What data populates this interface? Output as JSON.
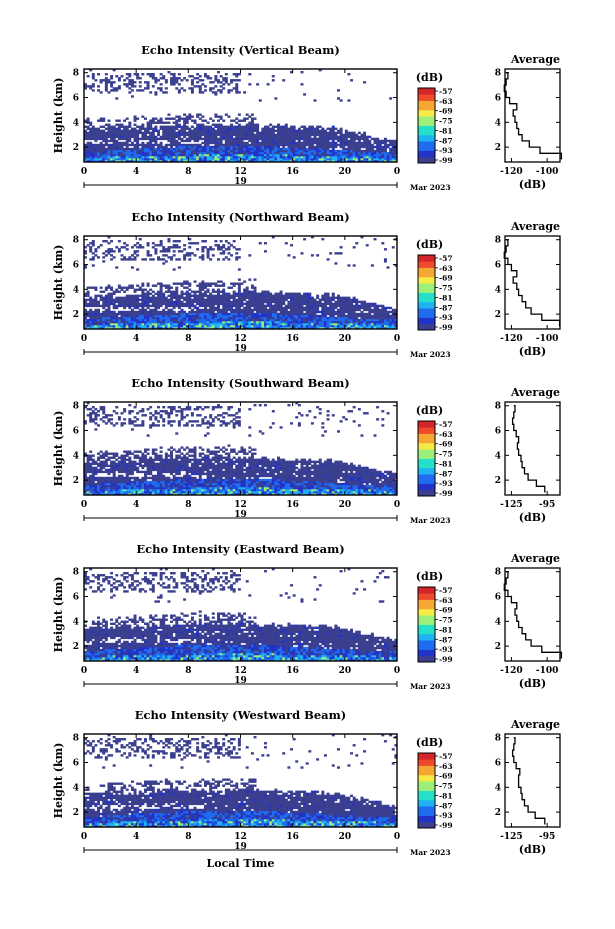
{
  "chart_data": [
    {
      "type": "heatmap",
      "title": "Echo Intensity (Vertical Beam)",
      "ylabel": "Height (km)",
      "yticks": [
        "8",
        "6",
        "4",
        "2"
      ],
      "xticks": [
        "0",
        "4",
        "8",
        "12",
        "16",
        "20",
        "0"
      ],
      "xlim": [
        0,
        24
      ],
      "ylim": [
        0.8,
        8.3
      ],
      "date_label": "19",
      "month_label": "Mar 2023",
      "colorbar": {
        "unit": "(dB)",
        "ticks": [
          "-57",
          "-63",
          "-69",
          "-75",
          "-81",
          "-87",
          "-93",
          "-99"
        ]
      },
      "profile": {
        "title": "Average",
        "xlabel": "(dB)",
        "xticks": [
          "-120",
          "-100"
        ],
        "yticks": [
          "8",
          "6",
          "4",
          "2"
        ],
        "height_km": [
          1.0,
          1.5,
          2.0,
          2.5,
          3.0,
          3.5,
          4.0,
          4.5,
          5.0,
          5.5,
          6.0,
          6.5,
          7.0,
          7.5,
          8.0
        ],
        "echo_db": [
          -92,
          -104,
          -110,
          -114,
          -116,
          -117,
          -118,
          -119,
          -117,
          -121,
          -123,
          -124,
          -123,
          -122,
          -123
        ]
      }
    },
    {
      "type": "heatmap",
      "title": "Echo Intensity (Northward Beam)",
      "ylabel": "Height (km)",
      "yticks": [
        "8",
        "6",
        "4",
        "2"
      ],
      "xticks": [
        "0",
        "4",
        "8",
        "12",
        "16",
        "20",
        "0"
      ],
      "xlim": [
        0,
        24
      ],
      "ylim": [
        0.8,
        8.3
      ],
      "date_label": "19",
      "month_label": "Mar 2023",
      "colorbar": {
        "unit": "(dB)",
        "ticks": [
          "-57",
          "-63",
          "-69",
          "-75",
          "-81",
          "-87",
          "-93",
          "-99"
        ]
      },
      "profile": {
        "title": "Average",
        "xlabel": "(dB)",
        "xticks": [
          "-120",
          "-100"
        ],
        "yticks": [
          "8",
          "6",
          "4",
          "2"
        ],
        "height_km": [
          1.0,
          1.5,
          2.0,
          2.5,
          3.0,
          3.5,
          4.0,
          4.5,
          5.0,
          5.5,
          6.0,
          6.5,
          7.0,
          7.5,
          8.0
        ],
        "echo_db": [
          -93,
          -103,
          -109,
          -112,
          -114,
          -116,
          -117,
          -119,
          -117,
          -120,
          -122,
          -124,
          -123,
          -122,
          -123
        ]
      }
    },
    {
      "type": "heatmap",
      "title": "Echo Intensity (Southward Beam)",
      "ylabel": "Height (km)",
      "yticks": [
        "8",
        "6",
        "4",
        "2"
      ],
      "xticks": [
        "0",
        "4",
        "8",
        "12",
        "16",
        "20",
        "0"
      ],
      "xlim": [
        0,
        24
      ],
      "ylim": [
        0.8,
        8.3
      ],
      "date_label": "19",
      "month_label": "Mar 2023",
      "colorbar": {
        "unit": "(dB)",
        "ticks": [
          "-57",
          "-63",
          "-69",
          "-75",
          "-81",
          "-87",
          "-93",
          "-99"
        ]
      },
      "profile": {
        "title": "Average",
        "xlabel": "(dB)",
        "xticks": [
          "-125",
          "-95"
        ],
        "yticks": [
          "8",
          "6",
          "4",
          "2"
        ],
        "height_km": [
          1.0,
          1.5,
          2.0,
          2.5,
          3.0,
          3.5,
          4.0,
          4.5,
          5.0,
          5.5,
          6.0,
          6.5,
          7.0,
          7.5,
          8.0
        ],
        "echo_db": [
          -97,
          -104,
          -111,
          -114,
          -116,
          -117,
          -119,
          -120,
          -119,
          -121,
          -123,
          -124,
          -123,
          -122,
          -123
        ]
      }
    },
    {
      "type": "heatmap",
      "title": "Echo Intensity (Eastward Beam)",
      "ylabel": "Height (km)",
      "yticks": [
        "8",
        "6",
        "4",
        "2"
      ],
      "xticks": [
        "0",
        "4",
        "8",
        "12",
        "16",
        "20",
        "0"
      ],
      "xlim": [
        0,
        24
      ],
      "ylim": [
        0.8,
        8.3
      ],
      "date_label": "19",
      "month_label": "Mar 2023",
      "colorbar": {
        "unit": "(dB)",
        "ticks": [
          "-57",
          "-63",
          "-69",
          "-75",
          "-81",
          "-87",
          "-93",
          "-99"
        ]
      },
      "profile": {
        "title": "Average",
        "xlabel": "(dB)",
        "xticks": [
          "-120",
          "-100"
        ],
        "yticks": [
          "8",
          "6",
          "4",
          "2"
        ],
        "height_km": [
          1.0,
          1.5,
          2.0,
          2.5,
          3.0,
          3.5,
          4.0,
          4.5,
          5.0,
          5.5,
          6.0,
          6.5,
          7.0,
          7.5,
          8.0
        ],
        "echo_db": [
          -92,
          -103,
          -109,
          -112,
          -114,
          -116,
          -117,
          -118,
          -117,
          -120,
          -122,
          -124,
          -123,
          -122,
          -123
        ]
      }
    },
    {
      "type": "heatmap",
      "title": "Echo Intensity (Westward Beam)",
      "ylabel": "Height (km)",
      "yticks": [
        "8",
        "6",
        "4",
        "2"
      ],
      "xticks": [
        "0",
        "4",
        "8",
        "12",
        "16",
        "20",
        "0"
      ],
      "xlim": [
        0,
        24
      ],
      "ylim": [
        0.8,
        8.3
      ],
      "date_label": "19",
      "month_label": "Mar 2023",
      "xlabel": "Local Time",
      "colorbar": {
        "unit": "(dB)",
        "ticks": [
          "-57",
          "-63",
          "-69",
          "-75",
          "-81",
          "-87",
          "-93",
          "-99"
        ]
      },
      "profile": {
        "title": "Average",
        "xlabel": "(dB)",
        "xticks": [
          "-125",
          "-95"
        ],
        "yticks": [
          "8",
          "6",
          "4",
          "2"
        ],
        "height_km": [
          1.0,
          1.5,
          2.0,
          2.5,
          3.0,
          3.5,
          4.0,
          4.5,
          5.0,
          5.5,
          6.0,
          6.5,
          7.0,
          7.5,
          8.0
        ],
        "echo_db": [
          -97,
          -105,
          -111,
          -114,
          -116,
          -117,
          -119,
          -119,
          -118,
          -121,
          -123,
          -124,
          -123,
          -122,
          -123
        ]
      }
    }
  ],
  "colors": {
    "colormap": [
      "#3b3f8f",
      "#2233c8",
      "#1f6cf0",
      "#1fb3f3",
      "#25e0c8",
      "#9cf07a",
      "#f4ec45",
      "#f6a733",
      "#ee4a2b",
      "#d4262a"
    ],
    "background_echo": "#3b3f8f",
    "axis": "#000000"
  }
}
